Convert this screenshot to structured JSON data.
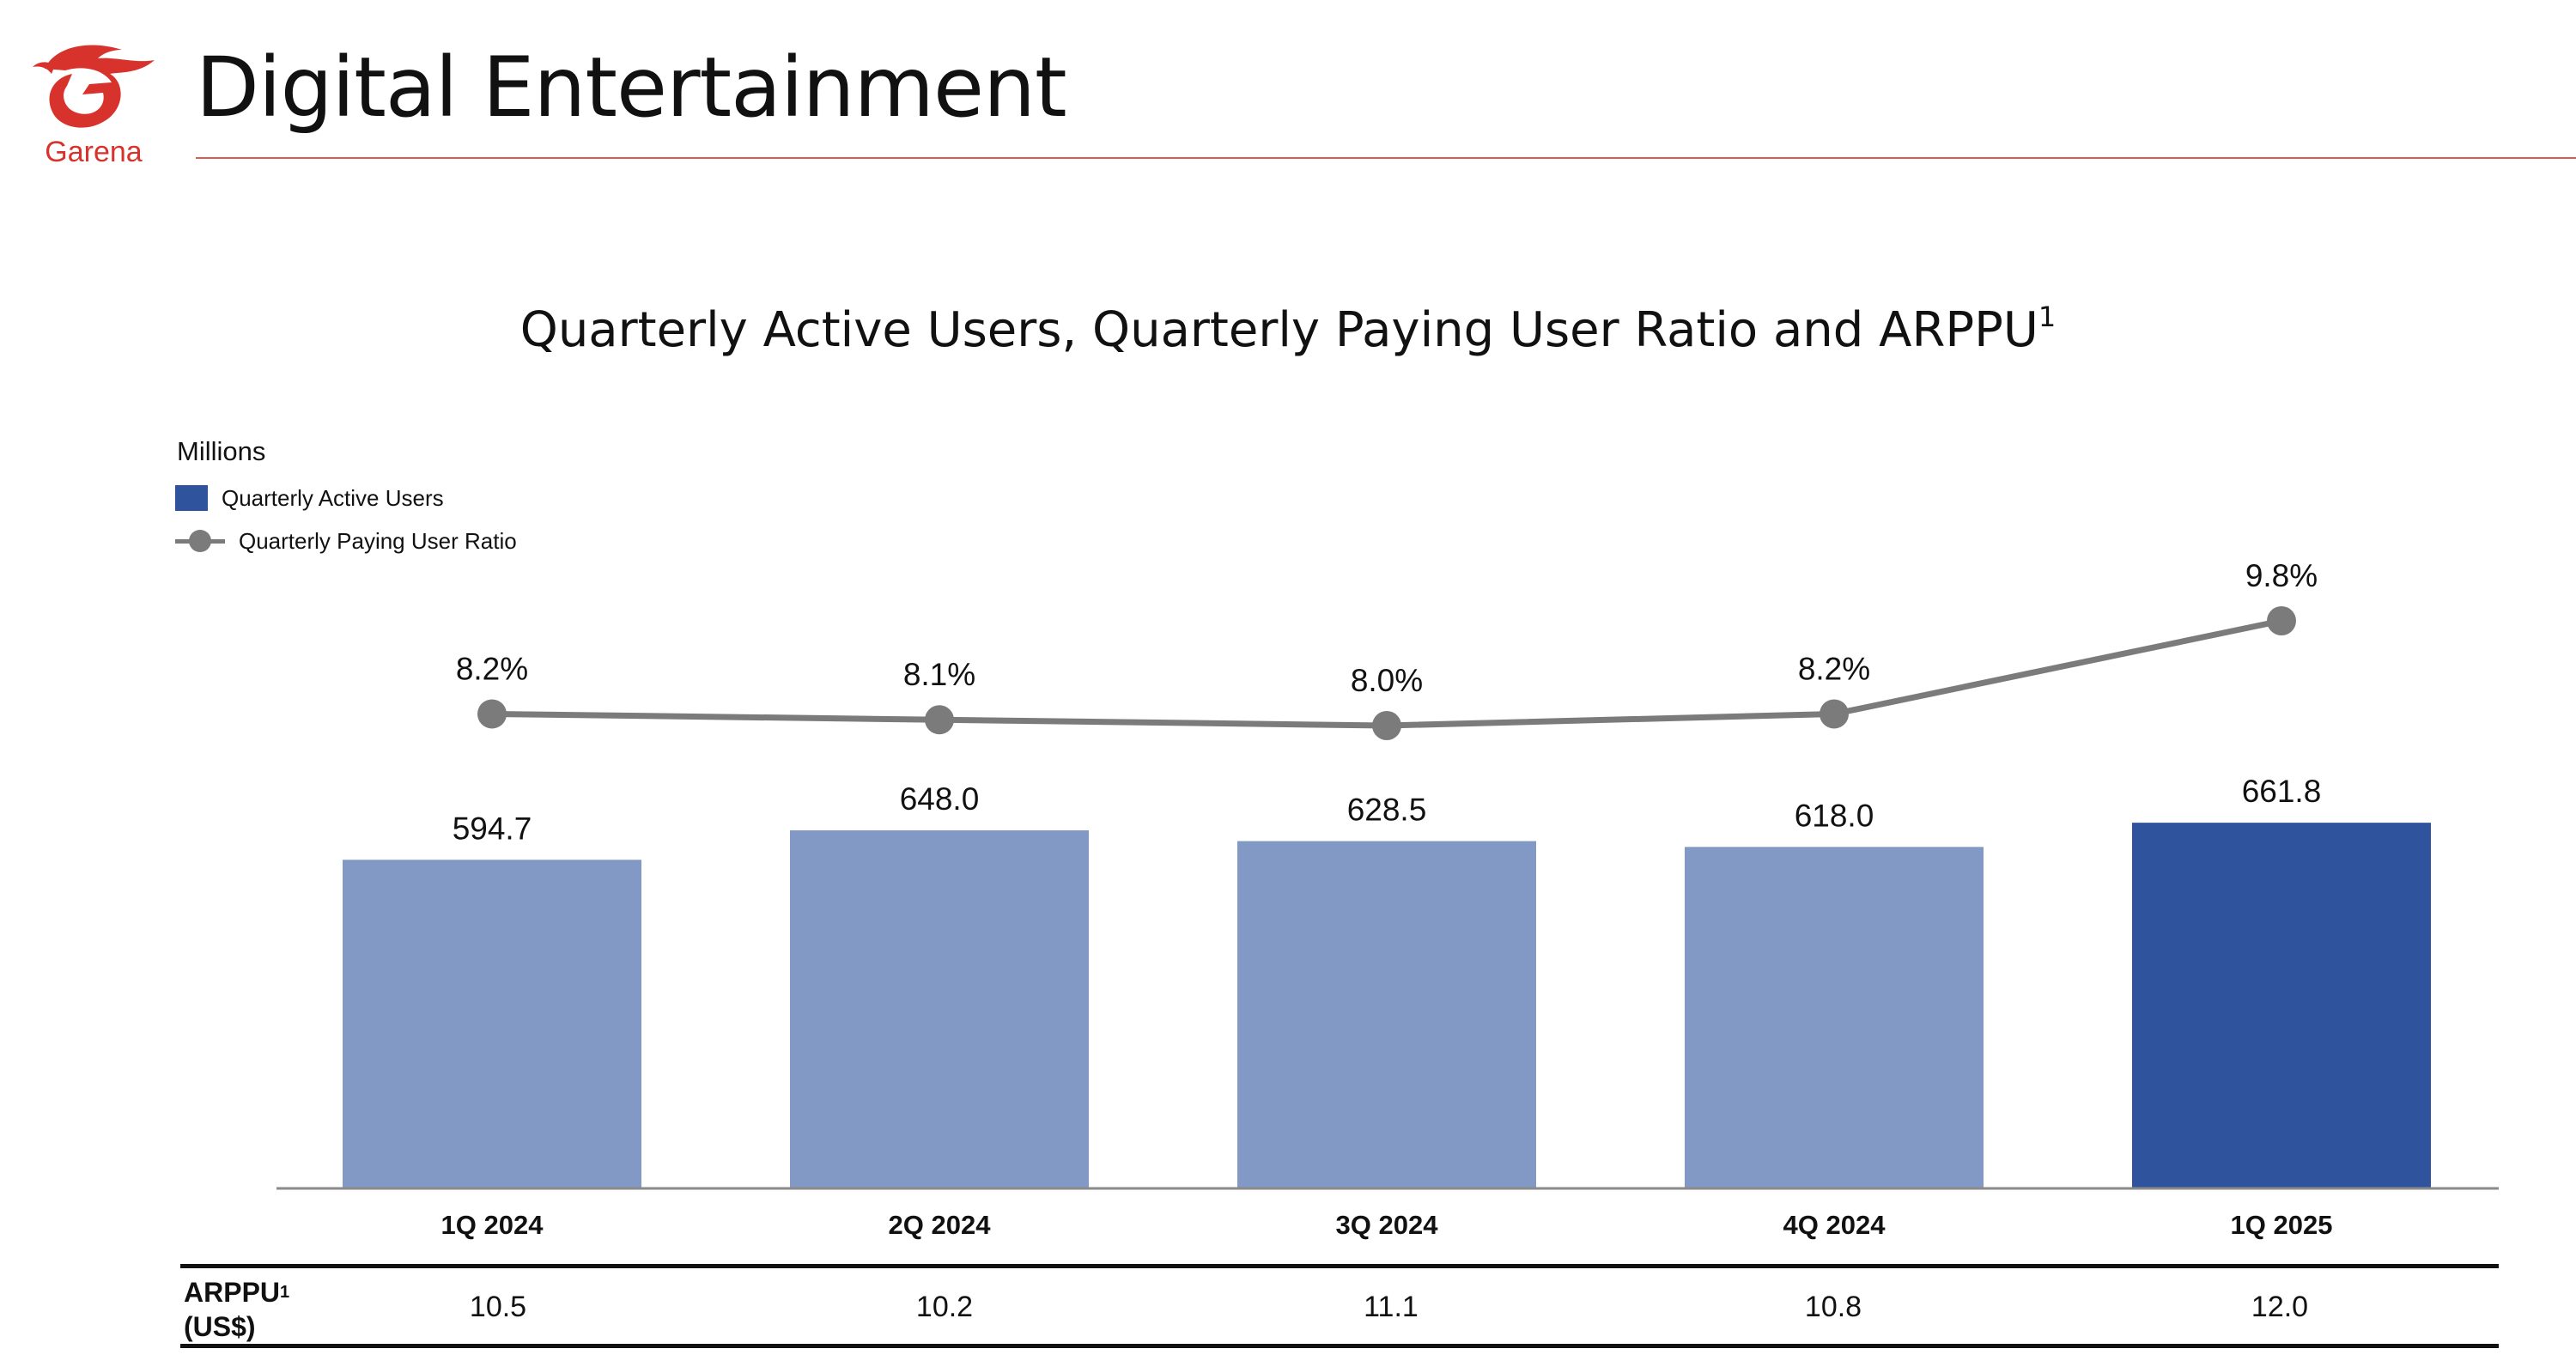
{
  "header": {
    "title": "Digital Entertainment",
    "logo_text": "Garena",
    "logo_icon": "garena-dragon-icon"
  },
  "colors": {
    "accent_red": "#d8322c",
    "bar_light": "#8299c5",
    "bar_highlight": "#2f539c",
    "line_gray": "#7b7b7b"
  },
  "chart": {
    "title": "Quarterly Active Users, Quarterly Paying User Ratio and ARPPU",
    "title_footnote": "1",
    "unit_label": "Millions",
    "legend": {
      "bars": "Quarterly Active Users",
      "line": "Quarterly Paying User Ratio"
    }
  },
  "chart_data": {
    "type": "bar",
    "title": "Quarterly Active Users, Quarterly Paying User Ratio and ARPPU1",
    "categories": [
      "1Q 2024",
      "2Q 2024",
      "3Q 2024",
      "4Q 2024",
      "1Q 2025"
    ],
    "ylabel": "Millions",
    "ylim": [
      0,
      662
    ],
    "legend_position": "top-left",
    "grid": false,
    "highlight_category": "1Q 2025",
    "series": [
      {
        "name": "Quarterly Active Users",
        "type": "bar",
        "values": [
          594.7,
          648.0,
          628.5,
          618.0,
          661.8
        ],
        "labels": [
          "594.7",
          "648.0",
          "628.5",
          "618.0",
          "661.8"
        ]
      },
      {
        "name": "Quarterly Paying User Ratio",
        "type": "line",
        "values": [
          8.2,
          8.1,
          8.0,
          8.2,
          9.8
        ],
        "labels": [
          "8.2%",
          "8.1%",
          "8.0%",
          "8.2%",
          "9.8%"
        ],
        "unit": "%"
      }
    ]
  },
  "arppu_table": {
    "label_line1": "ARPPU",
    "label_footnote": "1",
    "label_line2": "(US$)",
    "values": [
      "10.5",
      "10.2",
      "11.1",
      "10.8",
      "12.0"
    ]
  }
}
